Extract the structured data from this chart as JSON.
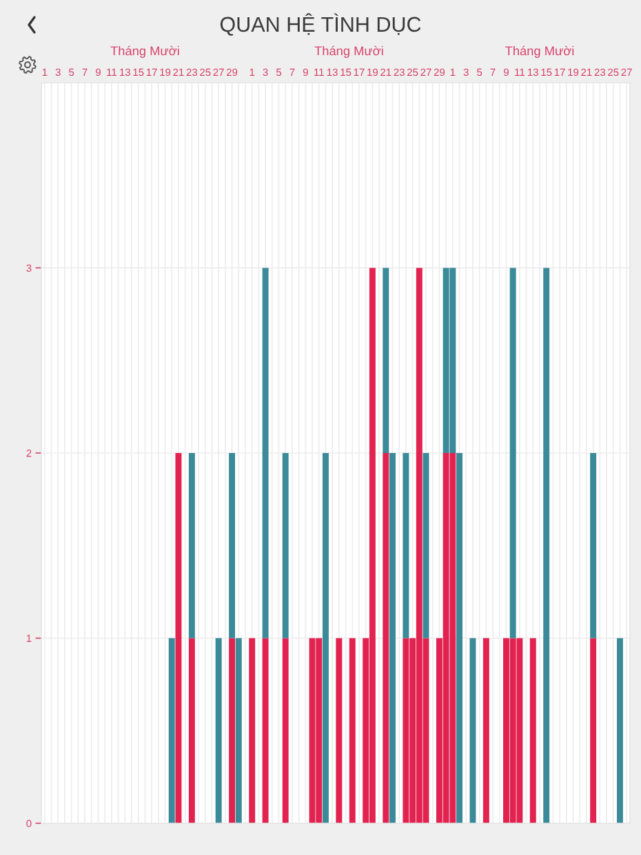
{
  "chart_data": {
    "type": "bar",
    "title": "QUAN HỆ TÌNH DỤC",
    "stacked": true,
    "categories": [
      "1",
      null,
      "3",
      null,
      "5",
      null,
      "7",
      null,
      "9",
      null,
      "11",
      null,
      "13",
      null,
      "15",
      null,
      "17",
      null,
      "19",
      null,
      "21",
      null,
      "23",
      null,
      "25",
      null,
      "27",
      null,
      "29",
      null,
      null,
      "1",
      null,
      "3",
      null,
      "5",
      null,
      "7",
      null,
      "9",
      null,
      "11",
      null,
      "13",
      null,
      "15",
      null,
      "17",
      null,
      "19",
      null,
      "21",
      null,
      "23",
      null,
      "25",
      null,
      "27",
      null,
      "29",
      null,
      "1",
      null,
      "3",
      null,
      "5",
      null,
      "7",
      null,
      "9",
      null,
      "11",
      null,
      "13",
      null,
      "15",
      null,
      "17",
      null,
      "19",
      null,
      "21",
      null,
      "23",
      null,
      "25",
      null,
      "27"
    ],
    "series": [
      {
        "color": "#e2224f",
        "values": [
          0,
          0,
          0,
          0,
          0,
          0,
          0,
          0,
          0,
          0,
          0,
          0,
          0,
          0,
          0,
          0,
          0,
          0,
          0,
          0,
          2,
          0,
          1,
          0,
          0,
          0,
          0,
          0,
          1,
          0,
          0,
          1,
          0,
          1,
          0,
          0,
          1,
          0,
          0,
          0,
          1,
          1,
          0,
          0,
          1,
          0,
          1,
          0,
          1,
          3,
          0,
          2,
          0,
          0,
          1,
          1,
          3,
          1,
          0,
          1,
          2,
          2,
          0,
          0,
          0,
          0,
          1,
          0,
          0,
          1,
          1,
          1,
          0,
          1,
          0,
          0,
          0,
          0,
          0,
          0,
          0,
          0,
          1,
          0,
          0,
          0,
          0,
          0
        ]
      },
      {
        "color": "#3a8a9a",
        "values": [
          0,
          0,
          0,
          0,
          0,
          0,
          0,
          0,
          0,
          0,
          0,
          0,
          0,
          0,
          0,
          0,
          0,
          0,
          0,
          1,
          0,
          0,
          1,
          0,
          0,
          0,
          1,
          0,
          1,
          1,
          0,
          0,
          0,
          2,
          0,
          0,
          1,
          0,
          0,
          0,
          0,
          0,
          2,
          0,
          0,
          0,
          0,
          0,
          0,
          0,
          0,
          1,
          2,
          0,
          1,
          0,
          0,
          1,
          0,
          0,
          1,
          1,
          2,
          0,
          1,
          0,
          0,
          0,
          0,
          0,
          2,
          0,
          0,
          0,
          0,
          3,
          0,
          0,
          0,
          0,
          0,
          0,
          1,
          0,
          0,
          0,
          1,
          0
        ]
      }
    ],
    "ylim": [
      0,
      4
    ],
    "yticks": [
      0,
      1,
      2,
      3
    ],
    "annotations": [
      "Tháng Mười",
      "Tháng Mười",
      "Tháng Mười"
    ],
    "grid": true
  }
}
